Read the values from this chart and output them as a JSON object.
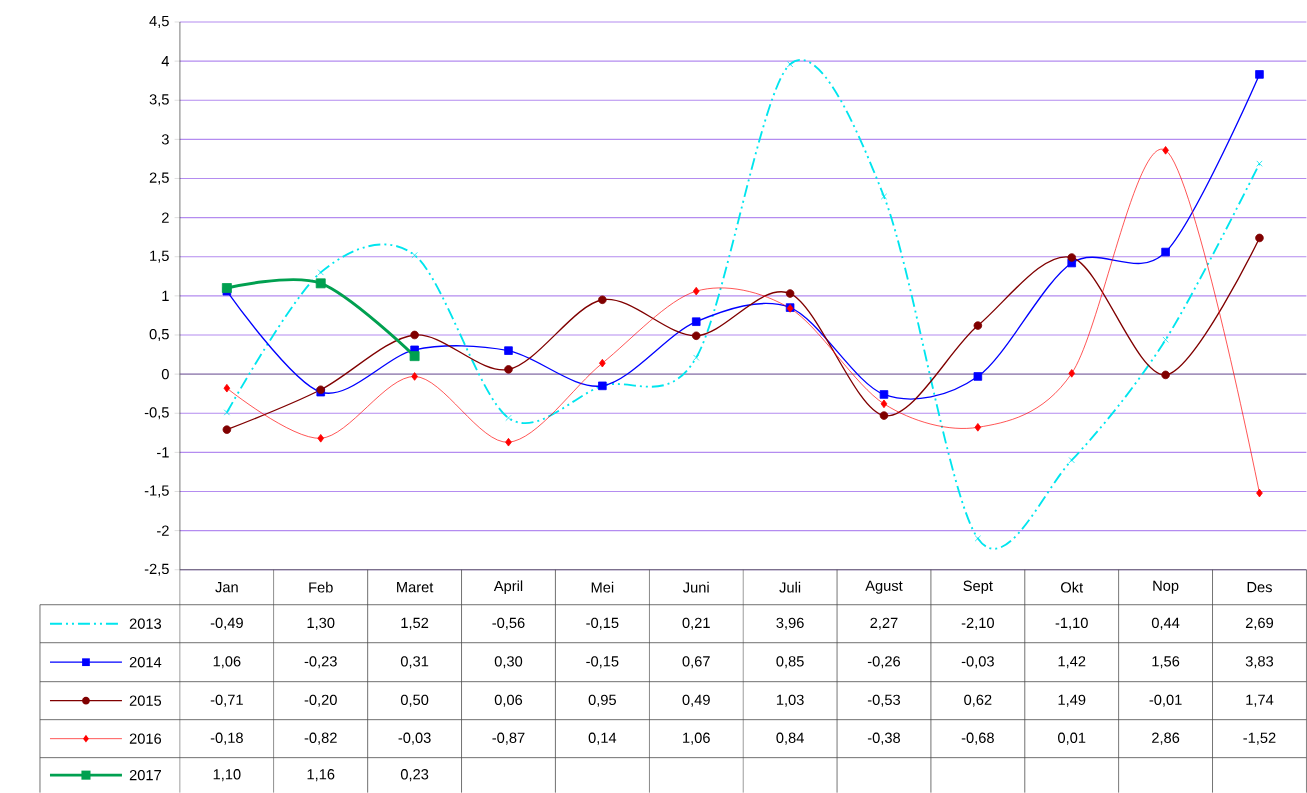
{
  "chart_data": {
    "type": "line",
    "categories": [
      "Jan",
      "Feb",
      "Maret",
      "April",
      "Mei",
      "Juni",
      "Juli",
      "Agust",
      "Sept",
      "Okt",
      "Nop",
      "Des"
    ],
    "series": [
      {
        "name": "2013",
        "color": "#00e5ee",
        "marker": "cross",
        "line_style": "dashed",
        "values": [
          -0.49,
          1.3,
          1.52,
          -0.56,
          -0.15,
          0.21,
          3.96,
          2.27,
          -2.1,
          -1.1,
          0.44,
          2.69
        ],
        "value_labels": [
          "-0,49",
          "1,30",
          "1,52",
          "-0,56",
          "-0,15",
          "0,21",
          "3,96",
          "2,27",
          "-2,10",
          "-1,10",
          "0,44",
          "2,69"
        ]
      },
      {
        "name": "2014",
        "color": "#0000ff",
        "marker": "square",
        "line_style": "solid",
        "values": [
          1.06,
          -0.23,
          0.31,
          0.3,
          -0.15,
          0.67,
          0.85,
          -0.26,
          -0.03,
          1.42,
          1.56,
          3.83
        ],
        "value_labels": [
          "1,06",
          "-0,23",
          "0,31",
          "0,30",
          "-0,15",
          "0,67",
          "0,85",
          "-0,26",
          "-0,03",
          "1,42",
          "1,56",
          "3,83"
        ]
      },
      {
        "name": "2015",
        "color": "#800000",
        "marker": "circle",
        "line_style": "solid",
        "values": [
          -0.71,
          -0.2,
          0.5,
          0.06,
          0.95,
          0.49,
          1.03,
          -0.53,
          0.62,
          1.49,
          -0.01,
          1.74
        ],
        "value_labels": [
          "-0,71",
          "-0,20",
          "0,50",
          "0,06",
          "0,95",
          "0,49",
          "1,03",
          "-0,53",
          "0,62",
          "1,49",
          "-0,01",
          "1,74"
        ]
      },
      {
        "name": "2016",
        "color": "#ff0000",
        "marker": "diamond",
        "line_style": "solid",
        "values": [
          -0.18,
          -0.82,
          -0.03,
          -0.87,
          0.14,
          1.06,
          0.84,
          -0.38,
          -0.68,
          0.01,
          2.86,
          -1.52
        ],
        "value_labels": [
          "-0,18",
          "-0,82",
          "-0,03",
          "-0,87",
          "0,14",
          "1,06",
          "0,84",
          "-0,38",
          "-0,68",
          "0,01",
          "2,86",
          "-1,52"
        ]
      },
      {
        "name": "2017",
        "color": "#00a050",
        "marker": "square",
        "line_style": "solid",
        "values": [
          1.1,
          1.16,
          0.23,
          null,
          null,
          null,
          null,
          null,
          null,
          null,
          null,
          null
        ],
        "value_labels": [
          "1,10",
          "1,16",
          "0,23",
          null,
          null,
          null,
          null,
          null,
          null,
          null,
          null,
          null
        ]
      }
    ],
    "ylim": [
      -2.5,
      4.5
    ],
    "yticks": [
      {
        "value": -2.5,
        "label": "-2,5"
      },
      -2,
      {
        "value": -1.5,
        "label": "-1,5"
      },
      -1,
      {
        "value": -0.5,
        "label": "-0,5"
      },
      0,
      {
        "value": 0.5,
        "label": "0,5"
      },
      1,
      {
        "value": 1.5,
        "label": "1,5"
      },
      2,
      {
        "value": 2.5,
        "label": "2,5"
      },
      3,
      {
        "value": 3.5,
        "label": "3,5"
      },
      4,
      {
        "value": 4.5,
        "label": "4,5"
      }
    ],
    "grid": "y",
    "legend": "bottom"
  }
}
